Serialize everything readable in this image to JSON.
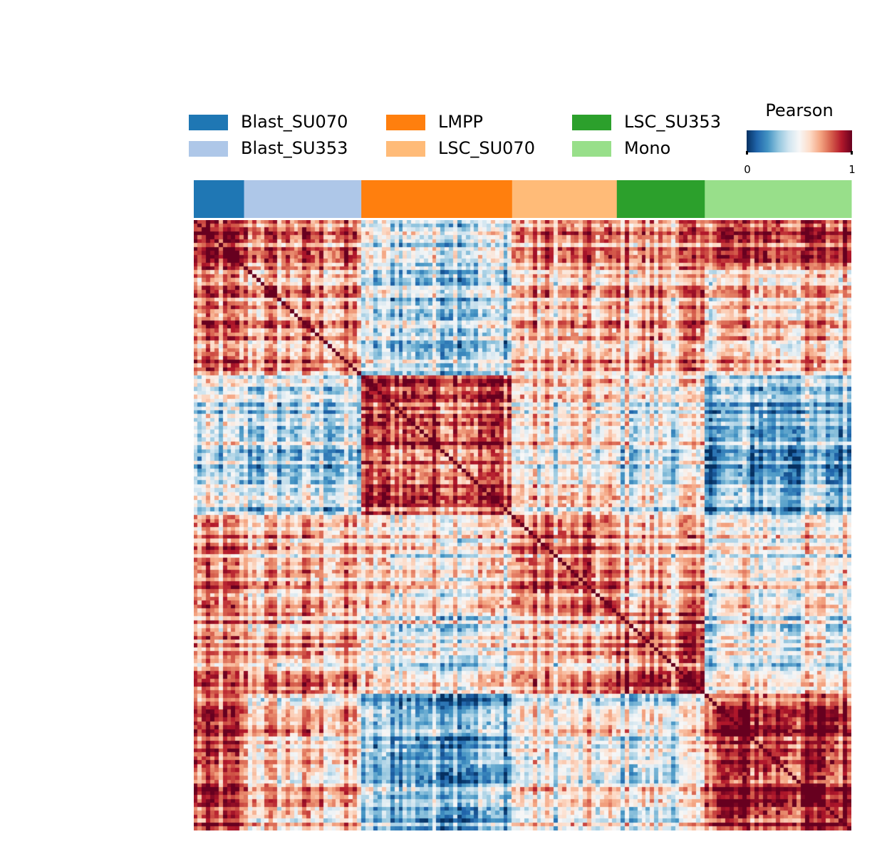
{
  "chart_data": {
    "type": "heatmap",
    "title": "",
    "colorbar": {
      "title": "Pearson",
      "min": 0,
      "max": 1,
      "tick_labels": [
        "0",
        "1"
      ],
      "colormap": "RdBu_r",
      "colors": [
        "#053061",
        "#2166ac",
        "#4393c3",
        "#92c5de",
        "#d1e5f0",
        "#f7f7f7",
        "#fddbc7",
        "#f4a582",
        "#d6604d",
        "#b2182b",
        "#67001f"
      ]
    },
    "groups": [
      {
        "name": "Blast_SU070",
        "color": "#1f77b4",
        "count": 12
      },
      {
        "name": "Blast_SU353",
        "color": "#aec7e8",
        "count": 28
      },
      {
        "name": "LMPP",
        "color": "#ff7f0e",
        "count": 36
      },
      {
        "name": "LSC_SU070",
        "color": "#ffbb78",
        "count": 25
      },
      {
        "name": "LSC_SU353",
        "color": "#2ca02c",
        "count": 21
      },
      {
        "name": "Mono",
        "color": "#98df8a",
        "count": 35
      }
    ],
    "group_mean_correlation": [
      [
        0.82,
        0.72,
        0.4,
        0.68,
        0.68,
        0.8
      ],
      [
        0.72,
        0.68,
        0.38,
        0.62,
        0.66,
        0.62
      ],
      [
        0.4,
        0.38,
        0.85,
        0.55,
        0.48,
        0.28
      ],
      [
        0.68,
        0.62,
        0.55,
        0.72,
        0.62,
        0.5
      ],
      [
        0.68,
        0.66,
        0.48,
        0.62,
        0.78,
        0.46
      ],
      [
        0.8,
        0.62,
        0.28,
        0.5,
        0.46,
        0.88
      ]
    ],
    "diagonal": 1,
    "legend_position": "top"
  }
}
